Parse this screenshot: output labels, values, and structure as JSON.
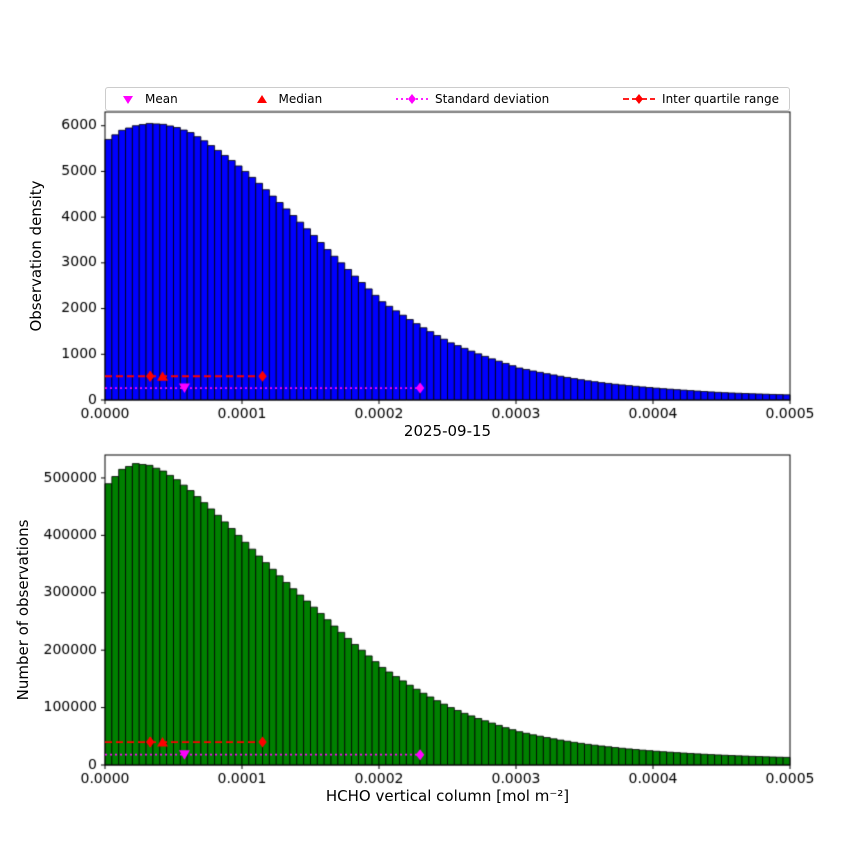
{
  "figure": {
    "title": "2025-09-15",
    "xlabel": "HCHO vertical column [mol m⁻²]",
    "background": "#ffffff"
  },
  "legend": {
    "items": [
      {
        "label": "Mean",
        "marker": "triangle-down",
        "color": "#ff00ff"
      },
      {
        "label": "Median",
        "marker": "triangle-up",
        "color": "#ff0000"
      },
      {
        "label": "Standard deviation",
        "marker": "diamond-dotted-line",
        "color": "#ff00ff"
      },
      {
        "label": "Inter quartile range",
        "marker": "diamond-dashed-line",
        "color": "#ff0000"
      }
    ]
  },
  "markers": {
    "mean_color": "#ff00ff",
    "median_color": "#ff0000",
    "std_color": "#ff00ff",
    "iqr_color": "#ff0000"
  },
  "chart_data": [
    {
      "type": "bar",
      "ylabel": "Observation density",
      "bar_color": "#0000ff",
      "bar_edge": "#000000",
      "bin_start": 0,
      "bin_width": 5e-06,
      "xlim": [
        0,
        0.0005
      ],
      "ylim": [
        0,
        6300
      ],
      "xticks": [
        0,
        0.0001,
        0.0002,
        0.0003,
        0.0004,
        0.0005
      ],
      "xtick_labels": [
        "0.0000",
        "0.0001",
        "0.0002",
        "0.0003",
        "0.0004",
        "0.0005"
      ],
      "yticks": [
        0,
        1000,
        2000,
        3000,
        4000,
        5000,
        6000
      ],
      "ytick_labels": [
        "0",
        "1000",
        "2000",
        "3000",
        "4000",
        "5000",
        "6000"
      ],
      "values": [
        5700,
        5800,
        5900,
        5950,
        6000,
        6025,
        6050,
        6040,
        6030,
        5995,
        5960,
        5905,
        5850,
        5760,
        5670,
        5565,
        5460,
        5350,
        5240,
        5120,
        5000,
        4870,
        4740,
        4600,
        4460,
        4320,
        4180,
        4035,
        3890,
        3745,
        3600,
        3445,
        3290,
        3145,
        3000,
        2855,
        2710,
        2570,
        2430,
        2290,
        2150,
        2050,
        1950,
        1855,
        1760,
        1670,
        1580,
        1495,
        1410,
        1330,
        1250,
        1190,
        1130,
        1070,
        1010,
        955,
        900,
        850,
        800,
        750,
        700,
        668,
        635,
        605,
        575,
        548,
        520,
        494,
        468,
        444,
        420,
        400,
        380,
        363,
        345,
        330,
        315,
        300,
        286,
        273,
        260,
        248,
        237,
        226,
        216,
        206,
        196,
        186,
        177,
        168,
        160,
        154,
        148,
        142,
        137,
        132,
        127,
        122,
        118,
        114
      ],
      "stats": {
        "mean": 5.8e-05,
        "median": 4.2e-05,
        "std_right": 0.00023,
        "iqr_low": 3.3e-05,
        "iqr_high": 0.000115,
        "iqr_line_y": 520,
        "std_line_y": 260
      }
    },
    {
      "type": "bar",
      "ylabel": "Number of observations",
      "bar_color": "#008000",
      "bar_edge": "#000000",
      "bin_start": 0,
      "bin_width": 5e-06,
      "xlim": [
        0,
        0.0005
      ],
      "ylim": [
        0,
        540000
      ],
      "xticks": [
        0,
        0.0001,
        0.0002,
        0.0003,
        0.0004,
        0.0005
      ],
      "xtick_labels": [
        "0.0000",
        "0.0001",
        "0.0002",
        "0.0003",
        "0.0004",
        "0.0005"
      ],
      "yticks": [
        0,
        100000,
        200000,
        300000,
        400000,
        500000
      ],
      "ytick_labels": [
        "0",
        "100000",
        "200000",
        "300000",
        "400000",
        "500000"
      ],
      "values": [
        490000,
        502500,
        515000,
        520000,
        525000,
        523500,
        522000,
        517000,
        512000,
        504500,
        497000,
        487500,
        478000,
        467500,
        457000,
        446000,
        435000,
        423500,
        412000,
        400000,
        388000,
        376000,
        364000,
        352500,
        341000,
        329500,
        318000,
        307000,
        296000,
        285500,
        275000,
        264000,
        253000,
        242000,
        231000,
        220500,
        210000,
        200000,
        190000,
        180000,
        170000,
        162000,
        154000,
        146500,
        139000,
        132000,
        125000,
        118500,
        112000,
        106000,
        100000,
        95000,
        90000,
        85500,
        81000,
        77000,
        73000,
        69000,
        65000,
        61500,
        58000,
        55300,
        52600,
        50200,
        47800,
        45600,
        43400,
        41450,
        39500,
        37750,
        36000,
        34550,
        33100,
        31750,
        30400,
        29200,
        28000,
        26950,
        25900,
        24950,
        24000,
        23150,
        22300,
        21550,
        20800,
        20100,
        19400,
        18750,
        18100,
        17550,
        17000,
        16500,
        16000,
        15550,
        15100,
        14700,
        14300,
        13950,
        13600,
        13300
      ],
      "stats": {
        "mean": 5.8e-05,
        "median": 4.2e-05,
        "std_right": 0.00023,
        "iqr_low": 3.3e-05,
        "iqr_high": 0.000115,
        "iqr_line_y": 40000,
        "std_line_y": 18000
      }
    }
  ]
}
